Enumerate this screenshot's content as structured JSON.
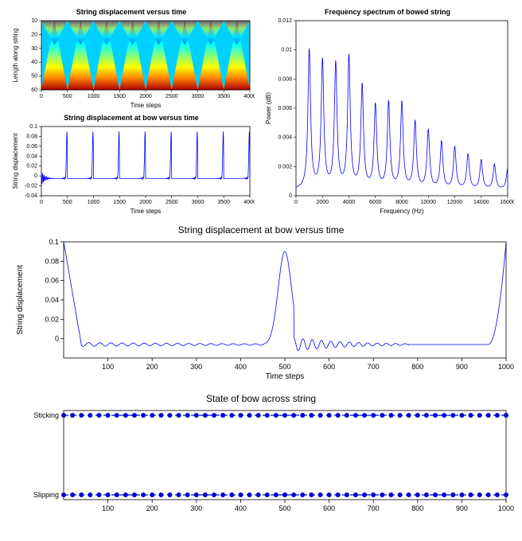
{
  "panel_heatmap": {
    "type": "heatmap",
    "title": "String displacement versus time",
    "xlabel": "Time steps",
    "ylabel": "Length along string",
    "xlim": [
      0,
      4000
    ],
    "ylim": [
      10,
      60
    ],
    "xticks": [
      0,
      500,
      1000,
      1500,
      2000,
      2500,
      3000,
      3500,
      4000
    ],
    "yticks": [
      10,
      20,
      30,
      40,
      50,
      60
    ],
    "title_fontsize": 9,
    "label_fontsize": 8,
    "colormap_stops": [
      "#0000aa",
      "#0080ff",
      "#00ffff",
      "#80ff80",
      "#ffff00",
      "#ff8000",
      "#aa0000"
    ],
    "triangle_period": 500,
    "background_color": "#ffffff"
  },
  "panel_bowtime": {
    "type": "line",
    "title": "String displacement at bow versus time",
    "xlabel": "Time steps",
    "ylabel": "String displacement",
    "xlim": [
      0,
      4000
    ],
    "ylim": [
      -0.04,
      0.1
    ],
    "xticks": [
      0,
      500,
      1000,
      1500,
      2000,
      2500,
      3000,
      3500,
      4000
    ],
    "yticks": [
      -0.04,
      -0.02,
      0,
      0.02,
      0.04,
      0.06,
      0.08,
      0.1
    ],
    "line_color": "#0000ff",
    "line_width": 0.8,
    "title_fontsize": 9,
    "label_fontsize": 8,
    "spike_period": 500,
    "spike_width": 40,
    "baseline": -0.005,
    "peak": 0.09,
    "ring_amp": 0.008
  },
  "panel_spectrum": {
    "type": "line",
    "title": "Frequency spectrum of bowed string",
    "xlabel": "Frequency (Hz)",
    "ylabel": "Power (dB)",
    "xlim": [
      0,
      16000
    ],
    "ylim": [
      0,
      0.012
    ],
    "xticks": [
      0,
      2000,
      4000,
      6000,
      8000,
      10000,
      12000,
      14000,
      16000
    ],
    "yticks": [
      0,
      0.002,
      0.004,
      0.006,
      0.008,
      0.01,
      0.012
    ],
    "line_color": "#0000ff",
    "line_width": 0.8,
    "title_fontsize": 9,
    "label_fontsize": 8,
    "fundamental_hz": 1000,
    "peak_heights": [
      0.01,
      0.0092,
      0.009,
      0.0095,
      0.0074,
      0.006,
      0.0062,
      0.0062,
      0.0048,
      0.0042,
      0.0034,
      0.003,
      0.0025,
      0.0021,
      0.0018,
      0.0015
    ],
    "peak_half_width_hz": 120
  },
  "panel_onecycle": {
    "type": "line",
    "title": "String displacement at bow versus time",
    "xlabel": "Time steps",
    "ylabel": "String displacement",
    "xlim": [
      0,
      1000
    ],
    "ylim": [
      -0.02,
      0.1
    ],
    "xticks": [
      100,
      200,
      300,
      400,
      500,
      600,
      700,
      800,
      900,
      1000
    ],
    "yticks": [
      0,
      0.02,
      0.04,
      0.06,
      0.08,
      0.1
    ],
    "line_color": "#0000ff",
    "line_width": 0.8,
    "title_fontsize": 12,
    "label_fontsize": 10,
    "baseline": -0.006,
    "center_spike_x": 500,
    "center_spike_peak": 0.09,
    "center_spike_halfwidth": 25,
    "post_ring_amp": 0.007,
    "left_edge_start": 0.1,
    "right_edge_end": 0.1
  },
  "panel_state": {
    "type": "categorical-timeline",
    "title": "State of bow across string",
    "xlim": [
      0,
      1000
    ],
    "xticks": [
      100,
      200,
      300,
      400,
      500,
      600,
      700,
      800,
      900,
      1000
    ],
    "y_categories": [
      "Slipping",
      "Sticking"
    ],
    "line_color": "#0000ff",
    "marker_color": "#0000cc",
    "marker_size": 3,
    "title_fontsize": 12,
    "label_fontsize": 10,
    "sticking_ranges": [
      [
        0,
        40
      ],
      [
        480,
        530
      ],
      [
        980,
        1000
      ]
    ],
    "both_dash_range_before": [
      0,
      500
    ],
    "both_dash_range_after": [
      500,
      1000
    ]
  }
}
